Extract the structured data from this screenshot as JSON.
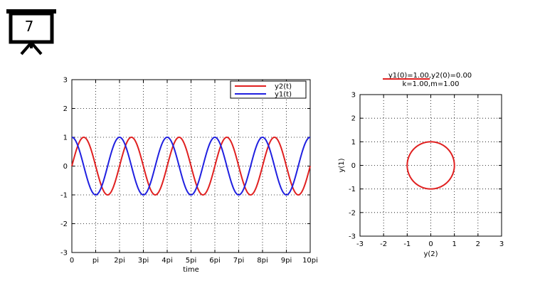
{
  "slide": {
    "number": "7",
    "icon": "presentation-board-icon"
  },
  "chart_data": [
    {
      "type": "line",
      "title": "",
      "xlabel": "time",
      "ylabel": "",
      "xlim_pi_multiples": [
        0,
        10
      ],
      "ylim": [
        -3,
        3
      ],
      "xticks": [
        "0",
        "pi",
        "2pi",
        "3pi",
        "4pi",
        "5pi",
        "6pi",
        "7pi",
        "8pi",
        "9pi",
        "10pi"
      ],
      "yticks": [
        "-3",
        "-2",
        "-1",
        "0",
        "1",
        "2",
        "3"
      ],
      "grid": true,
      "legend_position": "top-right",
      "series": [
        {
          "name": "y2(t)",
          "function": "sin(t)",
          "color": "#e02020"
        },
        {
          "name": "y1(t)",
          "function": "cos(t)",
          "color": "#2020e0"
        }
      ]
    },
    {
      "type": "line",
      "title": "y1(0)=1.00,y2(0)=0.00",
      "subtitle": "k=1.00,m=1.00",
      "xlabel": "y(2)",
      "ylabel": "y(1)",
      "xlim": [
        -3,
        3
      ],
      "ylim": [
        -3,
        3
      ],
      "xticks": [
        "-3",
        "-2",
        "-1",
        "0",
        "1",
        "2",
        "3"
      ],
      "yticks": [
        "-3",
        "-2",
        "-1",
        "0",
        "1",
        "2",
        "3"
      ],
      "grid": true,
      "series": [
        {
          "name": "",
          "curve": "circle",
          "center": [
            0,
            0
          ],
          "radius": 1.0,
          "color": "#e02020"
        }
      ]
    }
  ]
}
